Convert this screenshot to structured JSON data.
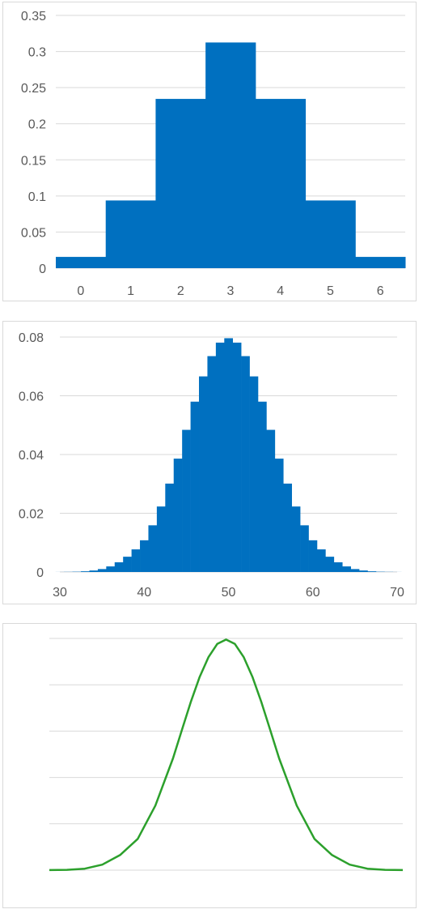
{
  "chart_data": [
    {
      "type": "bar",
      "title": "",
      "xlabel": "",
      "ylabel": "",
      "categories": [
        "0",
        "1",
        "2",
        "3",
        "4",
        "5",
        "6"
      ],
      "values": [
        0.015625,
        0.09375,
        0.234375,
        0.3125,
        0.234375,
        0.09375,
        0.015625
      ],
      "ylim": [
        0,
        0.35
      ],
      "yticks": [
        "0",
        "0.05",
        "0.1",
        "0.15",
        "0.2",
        "0.25",
        "0.3",
        "0.35"
      ],
      "grid": true,
      "legend": "none",
      "color": "#0070c0"
    },
    {
      "type": "bar",
      "title": "",
      "xlabel": "",
      "ylabel": "",
      "x": [
        30,
        31,
        32,
        33,
        34,
        35,
        36,
        37,
        38,
        39,
        40,
        41,
        42,
        43,
        44,
        45,
        46,
        47,
        48,
        49,
        50,
        51,
        52,
        53,
        54,
        55,
        56,
        57,
        58,
        59,
        60,
        61,
        62,
        63,
        64,
        65,
        66,
        67,
        68,
        69,
        70
      ],
      "values": [
        2e-05,
        5e-05,
        0.0001,
        0.00024,
        0.00051,
        0.001,
        0.0019,
        0.0033,
        0.0052,
        0.0077,
        0.0108,
        0.0159,
        0.0223,
        0.0301,
        0.0386,
        0.0484,
        0.058,
        0.0666,
        0.0735,
        0.0781,
        0.0796,
        0.0781,
        0.0735,
        0.0666,
        0.058,
        0.0484,
        0.0386,
        0.0301,
        0.0223,
        0.0159,
        0.0108,
        0.0077,
        0.0052,
        0.0033,
        0.0019,
        0.001,
        0.00051,
        0.00024,
        0.0001,
        5e-05,
        2e-05
      ],
      "xlim": [
        30,
        70
      ],
      "xticks": [
        "30",
        "40",
        "50",
        "60",
        "70"
      ],
      "ylim": [
        0,
        0.08
      ],
      "yticks": [
        "0",
        "0.02",
        "0.04",
        "0.06",
        "0.08"
      ],
      "grid": true,
      "legend": "none",
      "color": "#0070c0"
    },
    {
      "type": "line",
      "title": "",
      "xlabel": "",
      "ylabel": "",
      "x": [
        30,
        32,
        34,
        36,
        38,
        40,
        42,
        44,
        45,
        46,
        47,
        48,
        49,
        50,
        51,
        52,
        53,
        54,
        55,
        56,
        58,
        60,
        62,
        64,
        66,
        68,
        70
      ],
      "values": [
        2e-05,
        0.0001,
        0.0005,
        0.0019,
        0.0052,
        0.0108,
        0.0223,
        0.0386,
        0.0484,
        0.058,
        0.0666,
        0.0735,
        0.0781,
        0.0796,
        0.0781,
        0.0735,
        0.0666,
        0.058,
        0.0484,
        0.0386,
        0.0223,
        0.0108,
        0.0052,
        0.0019,
        0.0005,
        0.0001,
        2e-05
      ],
      "xlim": [
        30,
        70
      ],
      "ylim": [
        0,
        0.08
      ],
      "gridlines": 5,
      "axis_labels_shown": false,
      "grid": true,
      "legend": "none",
      "color": "#2ca02c"
    }
  ]
}
